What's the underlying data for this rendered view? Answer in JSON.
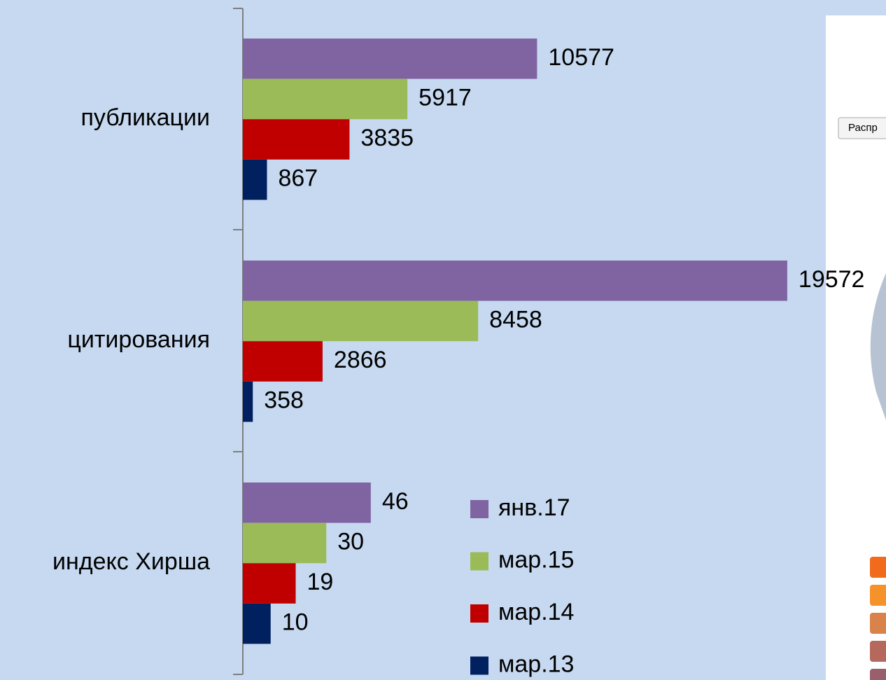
{
  "chart_data": [
    {
      "type": "bar",
      "orientation": "horizontal",
      "categories": [
        "публикации",
        "цитирования"
      ],
      "series": [
        {
          "color": "#8064a2",
          "values": [
            10577,
            19572
          ]
        },
        {
          "color": "#9bbb59",
          "values": [
            5917,
            8458
          ]
        },
        {
          "color": "#c00000",
          "values": [
            3835,
            2866
          ]
        },
        {
          "color": "#002060",
          "values": [
            867,
            358
          ]
        }
      ],
      "xlim": [
        0,
        19700
      ]
    },
    {
      "type": "bar",
      "orientation": "horizontal",
      "categories": [
        "индекс Хирша"
      ],
      "series": [
        {
          "name": "янв.17",
          "color": "#8064a2",
          "values": [
            46
          ]
        },
        {
          "name": "мар.15",
          "color": "#9bbb59",
          "values": [
            30
          ]
        },
        {
          "name": "мар.14",
          "color": "#c00000",
          "values": [
            19
          ]
        },
        {
          "name": "мар.13",
          "color": "#002060",
          "values": [
            10
          ]
        }
      ],
      "xlim": [
        0,
        197
      ]
    }
  ],
  "panel": {
    "button": "Распр"
  }
}
